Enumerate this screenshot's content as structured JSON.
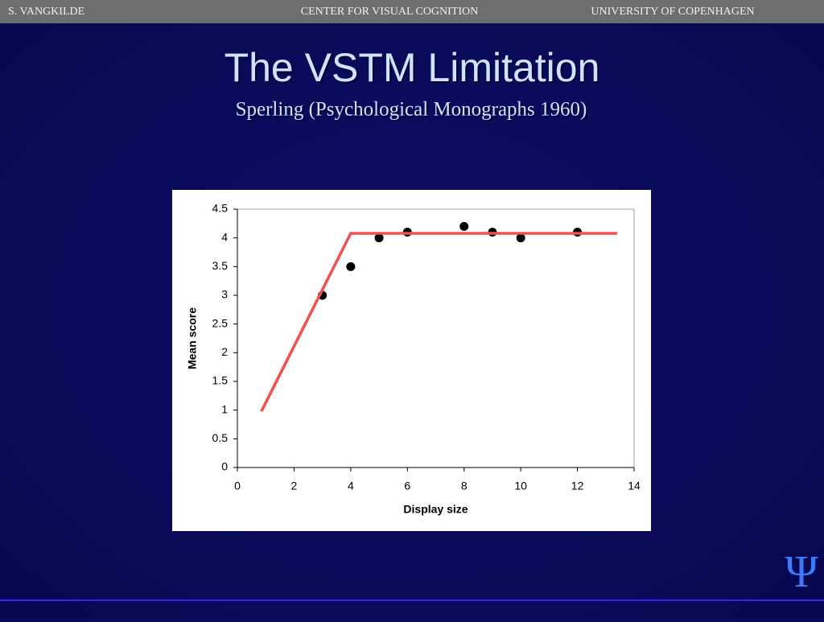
{
  "header": {
    "left": "S. VANGKILDE",
    "center": "CENTER FOR VISUAL COGNITION",
    "right": "UNIVERSITY OF COPENHAGEN"
  },
  "title": "The VSTM Limitation",
  "subtitle": "Sperling (Psychological Monographs 1960)",
  "logo": "Ψ",
  "chart_data": {
    "type": "scatter",
    "xlabel": "Display size",
    "ylabel": "Mean score",
    "xlim": [
      0,
      14
    ],
    "xticks": [
      0,
      2,
      4,
      6,
      8,
      10,
      12,
      14
    ],
    "ylim": [
      0,
      4.5
    ],
    "yticks": [
      0,
      0.5,
      1,
      1.5,
      2,
      2.5,
      3,
      3.5,
      4,
      4.5
    ],
    "series": [
      {
        "mode": "markers",
        "color": "#000000",
        "x": [
          3,
          4,
          5,
          6,
          8,
          9,
          10,
          12
        ],
        "values": [
          3.0,
          3.5,
          4.0,
          4.1,
          4.2,
          4.1,
          4.0,
          4.1
        ]
      },
      {
        "mode": "line",
        "color": "#f05050",
        "x": [
          0.85,
          4.0,
          13.4
        ],
        "values": [
          0.98,
          4.08,
          4.08
        ]
      }
    ]
  }
}
